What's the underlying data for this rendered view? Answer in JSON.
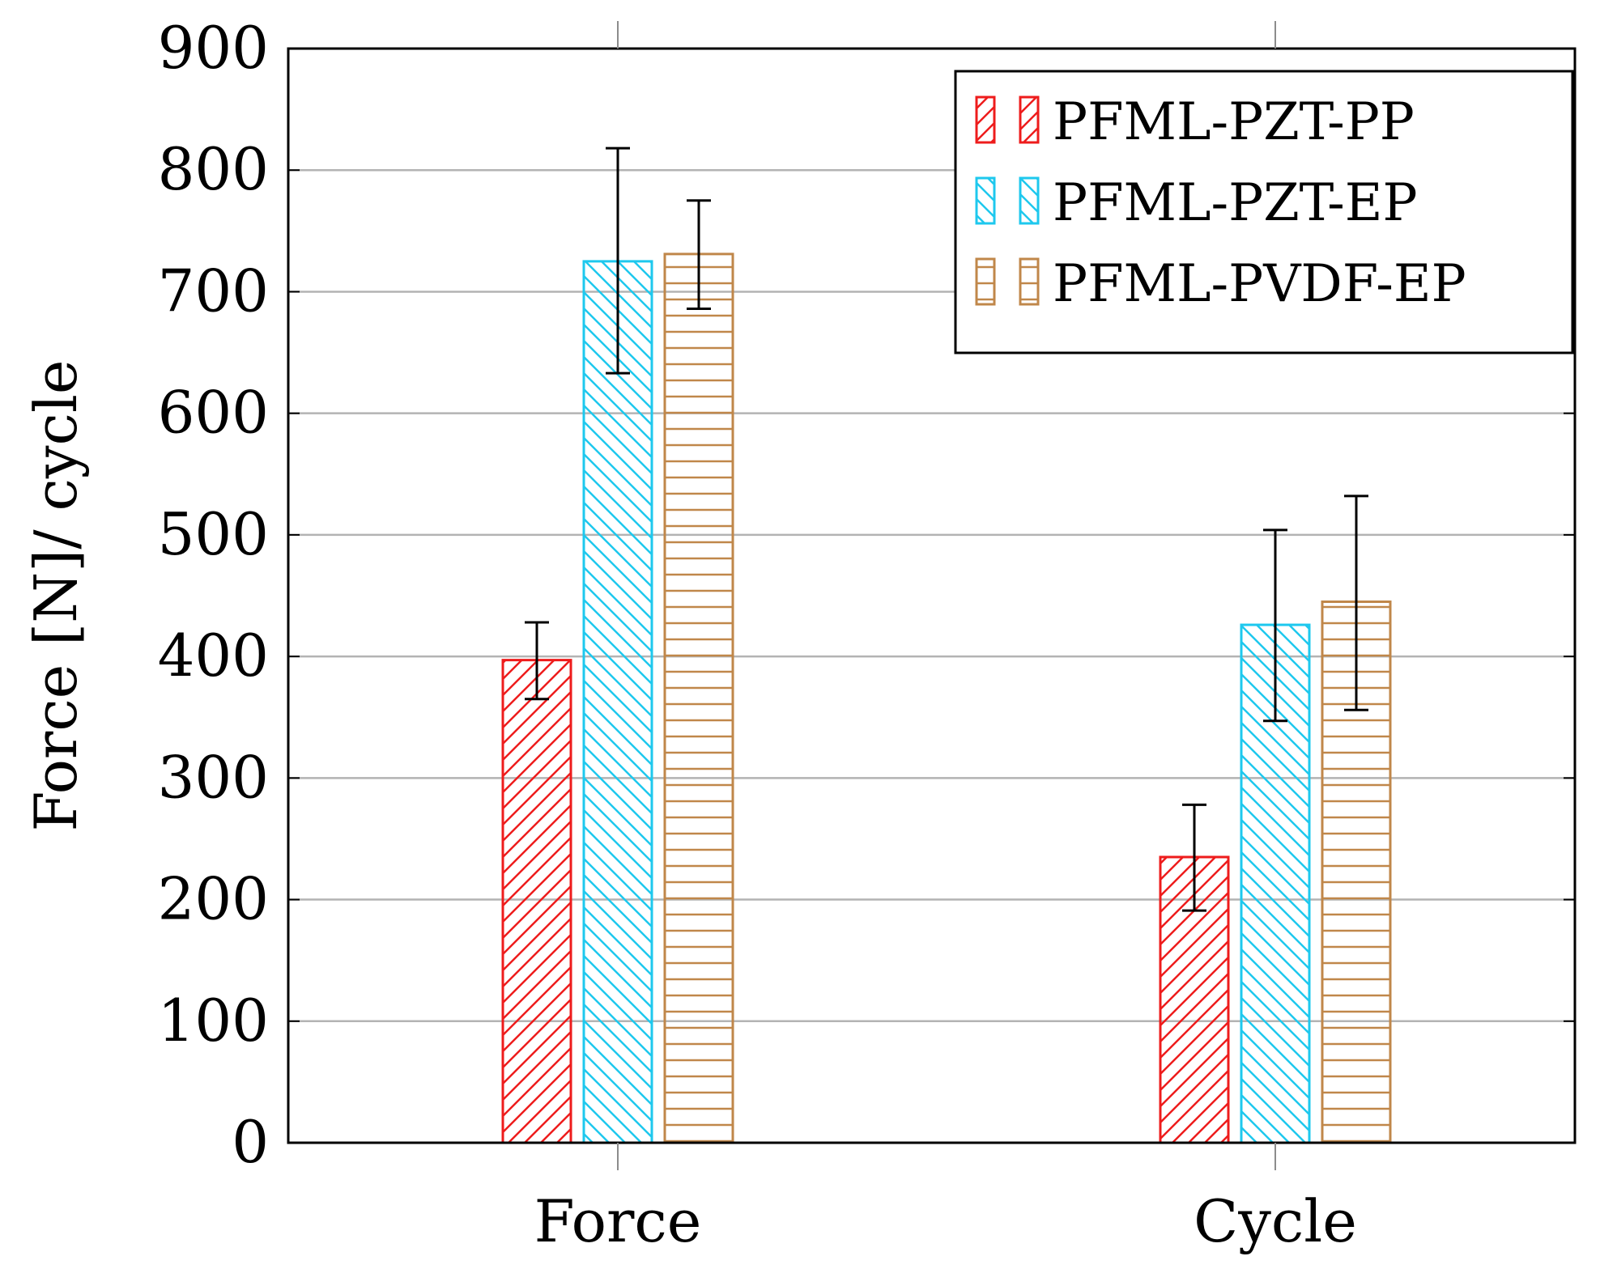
{
  "chart_data": {
    "type": "bar",
    "title": "",
    "xlabel": "",
    "ylabel": "Force [N]/ cycle",
    "categories": [
      "Force",
      "Cycle"
    ],
    "ylim": [
      0,
      900
    ],
    "yticks": [
      0,
      100,
      200,
      300,
      400,
      500,
      600,
      700,
      800,
      900
    ],
    "ytick_labels": [
      "0",
      "100",
      "200",
      "300",
      "400",
      "500",
      "600",
      "700",
      "800",
      "900"
    ],
    "grid": true,
    "legend_position": "top-right",
    "series": [
      {
        "name": "PFML-PZT-PP",
        "color": "#ee1c1c",
        "pattern": "diagonal-up",
        "values": [
          397,
          235
        ],
        "error_low": [
          365,
          191
        ],
        "error_high": [
          428,
          278
        ]
      },
      {
        "name": "PFML-PZT-EP",
        "color": "#1ec8ee",
        "pattern": "diagonal-down",
        "values": [
          725,
          426
        ],
        "error_low": [
          633,
          347
        ],
        "error_high": [
          818,
          504
        ]
      },
      {
        "name": "PFML-PVDF-EP",
        "color": "#c0874a",
        "pattern": "horizontal",
        "values": [
          731,
          445
        ],
        "error_low": [
          686,
          356
        ],
        "error_high": [
          775,
          532
        ]
      }
    ]
  }
}
